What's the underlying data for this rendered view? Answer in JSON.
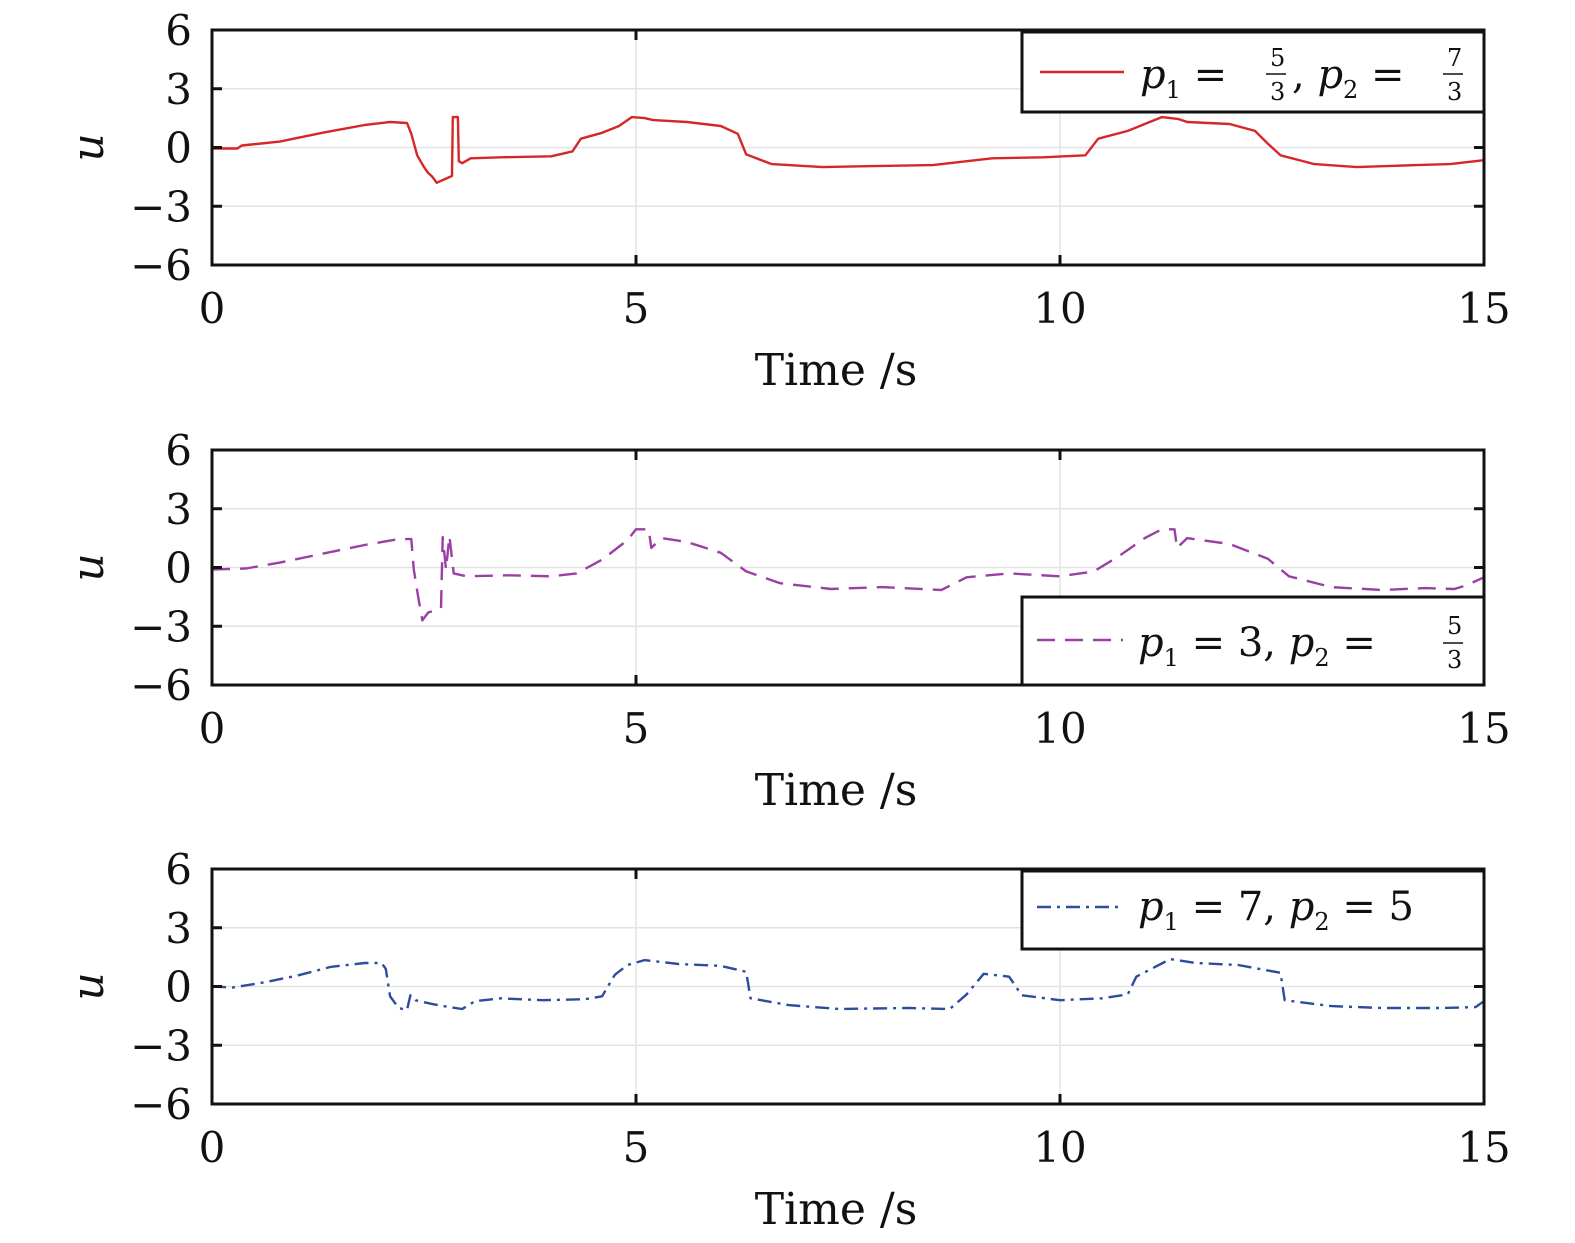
{
  "chart_data": [
    {
      "type": "line",
      "xlabel": "Time /s",
      "ylabel": "u",
      "xlim": [
        0,
        15
      ],
      "ylim": [
        -6,
        6
      ],
      "xticks": [
        "0",
        "5",
        "10",
        "15"
      ],
      "yticks": [
        "6",
        "3",
        "0",
        "−3",
        "−6"
      ],
      "grid": true,
      "legend_position": "top-right",
      "series": [
        {
          "name": "p1 = 5/3, p2 = 7/3",
          "color": "#d62728",
          "style": "solid",
          "points": [
            [
              0,
              -0.05
            ],
            [
              0.3,
              -0.05
            ],
            [
              0.35,
              0.1
            ],
            [
              0.8,
              0.3
            ],
            [
              1.3,
              0.75
            ],
            [
              1.8,
              1.15
            ],
            [
              2.1,
              1.3
            ],
            [
              2.3,
              1.25
            ],
            [
              2.35,
              0.7
            ],
            [
              2.42,
              -0.4
            ],
            [
              2.5,
              -1.0
            ],
            [
              2.55,
              -1.3
            ],
            [
              2.6,
              -1.5
            ],
            [
              2.65,
              -1.8
            ],
            [
              2.7,
              -1.7
            ],
            [
              2.78,
              -1.55
            ],
            [
              2.83,
              -1.45
            ],
            [
              2.84,
              1.55
            ],
            [
              2.9,
              1.55
            ],
            [
              2.91,
              -0.7
            ],
            [
              2.95,
              -0.8
            ],
            [
              3.05,
              -0.55
            ],
            [
              3.4,
              -0.5
            ],
            [
              4.0,
              -0.45
            ],
            [
              4.25,
              -0.2
            ],
            [
              4.35,
              0.45
            ],
            [
              4.6,
              0.75
            ],
            [
              4.8,
              1.1
            ],
            [
              4.95,
              1.55
            ],
            [
              5.1,
              1.5
            ],
            [
              5.2,
              1.4
            ],
            [
              5.6,
              1.3
            ],
            [
              6.0,
              1.1
            ],
            [
              6.2,
              0.7
            ],
            [
              6.3,
              -0.35
            ],
            [
              6.6,
              -0.85
            ],
            [
              7.2,
              -1.0
            ],
            [
              7.8,
              -0.95
            ],
            [
              8.5,
              -0.9
            ],
            [
              9.2,
              -0.55
            ],
            [
              9.8,
              -0.5
            ],
            [
              10.3,
              -0.4
            ],
            [
              10.45,
              0.45
            ],
            [
              10.8,
              0.85
            ],
            [
              11.2,
              1.55
            ],
            [
              11.4,
              1.45
            ],
            [
              11.5,
              1.3
            ],
            [
              12.0,
              1.2
            ],
            [
              12.3,
              0.85
            ],
            [
              12.45,
              0.2
            ],
            [
              12.6,
              -0.4
            ],
            [
              13.0,
              -0.85
            ],
            [
              13.5,
              -1.0
            ],
            [
              14.2,
              -0.9
            ],
            [
              14.6,
              -0.85
            ],
            [
              15.0,
              -0.65
            ]
          ]
        }
      ]
    },
    {
      "type": "line",
      "xlabel": "Time /s",
      "ylabel": "u",
      "xlim": [
        0,
        15
      ],
      "ylim": [
        -6,
        6
      ],
      "xticks": [
        "0",
        "5",
        "10",
        "15"
      ],
      "yticks": [
        "6",
        "3",
        "0",
        "−3",
        "−6"
      ],
      "grid": true,
      "legend_position": "bottom-right",
      "series": [
        {
          "name": "p1 = 3, p2 = 5/3",
          "color": "#9b3fa5",
          "style": "dashed",
          "points": [
            [
              0,
              -0.1
            ],
            [
              0.4,
              -0.05
            ],
            [
              0.8,
              0.25
            ],
            [
              1.3,
              0.7
            ],
            [
              1.8,
              1.15
            ],
            [
              2.2,
              1.45
            ],
            [
              2.35,
              1.45
            ],
            [
              2.38,
              -0.1
            ],
            [
              2.42,
              -1.2
            ],
            [
              2.48,
              -2.7
            ],
            [
              2.55,
              -2.3
            ],
            [
              2.7,
              -2.1
            ],
            [
              2.72,
              1.55
            ],
            [
              2.76,
              -0.1
            ],
            [
              2.8,
              1.6
            ],
            [
              2.85,
              -0.3
            ],
            [
              3.0,
              -0.45
            ],
            [
              3.5,
              -0.4
            ],
            [
              4.0,
              -0.45
            ],
            [
              4.3,
              -0.3
            ],
            [
              4.6,
              0.4
            ],
            [
              4.9,
              1.4
            ],
            [
              5.0,
              1.95
            ],
            [
              5.15,
              1.95
            ],
            [
              5.18,
              1.0
            ],
            [
              5.3,
              1.5
            ],
            [
              5.6,
              1.3
            ],
            [
              6.0,
              0.75
            ],
            [
              6.3,
              -0.2
            ],
            [
              6.7,
              -0.8
            ],
            [
              7.3,
              -1.1
            ],
            [
              7.9,
              -1.0
            ],
            [
              8.6,
              -1.15
            ],
            [
              8.9,
              -0.5
            ],
            [
              9.4,
              -0.3
            ],
            [
              10.0,
              -0.45
            ],
            [
              10.4,
              -0.2
            ],
            [
              10.7,
              0.6
            ],
            [
              11.0,
              1.5
            ],
            [
              11.2,
              1.95
            ],
            [
              11.35,
              1.95
            ],
            [
              11.38,
              1.0
            ],
            [
              11.5,
              1.5
            ],
            [
              12.0,
              1.2
            ],
            [
              12.45,
              0.45
            ],
            [
              12.7,
              -0.45
            ],
            [
              13.2,
              -1.0
            ],
            [
              13.8,
              -1.15
            ],
            [
              14.3,
              -1.05
            ],
            [
              14.65,
              -1.1
            ],
            [
              14.8,
              -0.9
            ],
            [
              15.0,
              -0.5
            ]
          ]
        }
      ]
    },
    {
      "type": "line",
      "xlabel": "Time /s",
      "ylabel": "u",
      "xlim": [
        0,
        15
      ],
      "ylim": [
        -6,
        6
      ],
      "xticks": [
        "0",
        "5",
        "10",
        "15"
      ],
      "yticks": [
        "6",
        "3",
        "0",
        "−3",
        "−6"
      ],
      "grid": true,
      "legend_position": "top-right",
      "series": [
        {
          "name": "p1 = 7, p2 = 5",
          "color": "#2b4d9e",
          "style": "dashdot",
          "points": [
            [
              0,
              0.0
            ],
            [
              0.25,
              -0.05
            ],
            [
              0.6,
              0.2
            ],
            [
              1.0,
              0.55
            ],
            [
              1.4,
              1.0
            ],
            [
              1.8,
              1.2
            ],
            [
              2.0,
              1.2
            ],
            [
              2.05,
              0.9
            ],
            [
              2.1,
              -0.5
            ],
            [
              2.2,
              -1.1
            ],
            [
              2.3,
              -1.2
            ],
            [
              2.34,
              -0.45
            ],
            [
              2.4,
              -0.7
            ],
            [
              2.6,
              -0.9
            ],
            [
              2.8,
              -1.05
            ],
            [
              2.95,
              -1.15
            ],
            [
              3.1,
              -0.75
            ],
            [
              3.4,
              -0.6
            ],
            [
              3.9,
              -0.7
            ],
            [
              4.4,
              -0.65
            ],
            [
              4.6,
              -0.5
            ],
            [
              4.75,
              0.6
            ],
            [
              4.9,
              1.1
            ],
            [
              5.1,
              1.35
            ],
            [
              5.5,
              1.15
            ],
            [
              6.0,
              1.05
            ],
            [
              6.3,
              0.75
            ],
            [
              6.35,
              -0.6
            ],
            [
              6.8,
              -0.95
            ],
            [
              7.4,
              -1.15
            ],
            [
              8.2,
              -1.1
            ],
            [
              8.7,
              -1.15
            ],
            [
              8.9,
              -0.4
            ],
            [
              9.1,
              0.65
            ],
            [
              9.4,
              0.5
            ],
            [
              9.55,
              -0.45
            ],
            [
              10.0,
              -0.7
            ],
            [
              10.5,
              -0.6
            ],
            [
              10.8,
              -0.4
            ],
            [
              10.9,
              0.5
            ],
            [
              11.3,
              1.4
            ],
            [
              11.6,
              1.2
            ],
            [
              12.1,
              1.1
            ],
            [
              12.6,
              0.7
            ],
            [
              12.65,
              -0.7
            ],
            [
              13.2,
              -1.0
            ],
            [
              13.8,
              -1.1
            ],
            [
              14.5,
              -1.1
            ],
            [
              14.9,
              -1.05
            ],
            [
              15.0,
              -0.75
            ]
          ]
        }
      ]
    }
  ]
}
